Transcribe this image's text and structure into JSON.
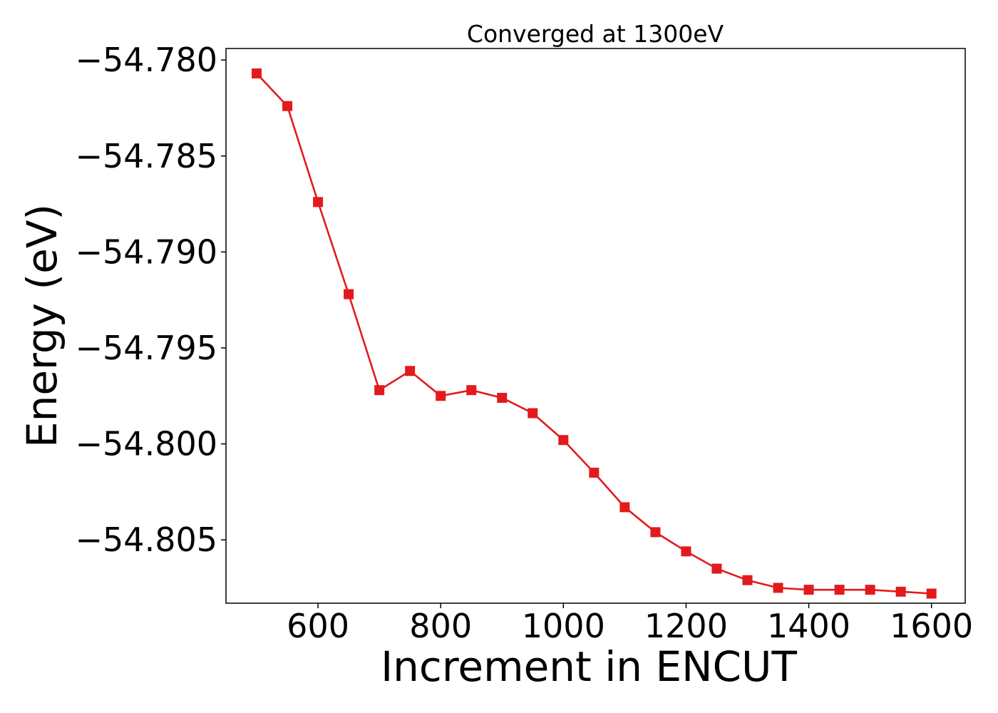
{
  "chart_data": {
    "type": "line",
    "title": "Converged at 1300eV",
    "xlabel": "Increment in ENCUT",
    "ylabel": "Energy (eV)",
    "xlim": [
      450,
      1655
    ],
    "ylim": [
      -54.8083,
      -54.7794
    ],
    "x_ticks": [
      600,
      800,
      1000,
      1200,
      1400,
      1600
    ],
    "x_tick_labels": [
      "600",
      "800",
      "1000",
      "1200",
      "1400",
      "1600"
    ],
    "y_ticks": [
      -54.78,
      -54.785,
      -54.79,
      -54.795,
      -54.8,
      -54.805
    ],
    "y_tick_labels": [
      "−54.780",
      "−54.785",
      "−54.790",
      "−54.795",
      "−54.800",
      "−54.805"
    ],
    "grid": false,
    "marker": "square",
    "color": "#e31a1c",
    "series": [
      {
        "x": [
          500,
          550,
          600,
          650,
          700,
          750,
          800,
          850,
          900,
          950,
          1000,
          1050,
          1100,
          1150,
          1200,
          1250,
          1300,
          1350,
          1400,
          1450,
          1500,
          1550,
          1600
        ],
        "values": [
          -54.7807,
          -54.7824,
          -54.7874,
          -54.7922,
          -54.7972,
          -54.7962,
          -54.7975,
          -54.7972,
          -54.7976,
          -54.7984,
          -54.7998,
          -54.8015,
          -54.8033,
          -54.8046,
          -54.8056,
          -54.8065,
          -54.8071,
          -54.8075,
          -54.8076,
          -54.8076,
          -54.8076,
          -54.8077,
          -54.8078
        ]
      }
    ]
  }
}
